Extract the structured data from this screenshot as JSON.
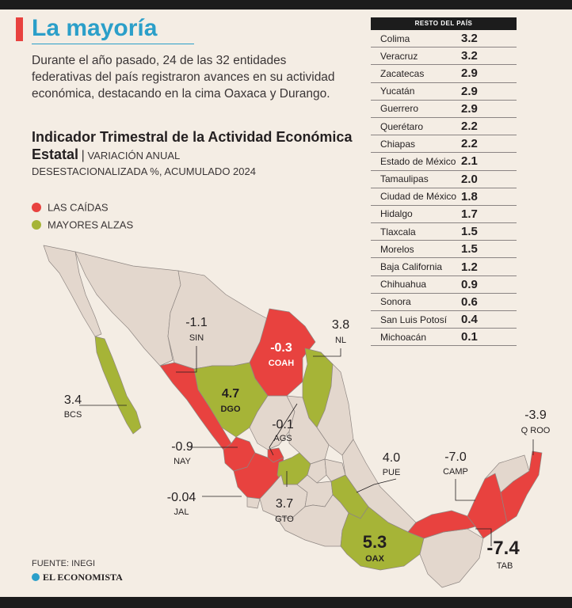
{
  "header": {
    "title": "La mayoría",
    "intro": "Durante el año pasado, 24 de las 32 entidades federativas del país registraron avances en su actividad económica, destacando en la cima Oaxaca y Durango.",
    "indicator_bold": "Indicador Trimestral de la Actividad Económica Estatal",
    "indicator_separator": "|",
    "indicator_sub1": "VARIACIÓN ANUAL",
    "indicator_sub2": "DESESTACIONALIZADA %, ACUMULADO 2024"
  },
  "legend": {
    "falls_label": "LAS CAÍDAS",
    "rises_label": "MAYORES ALZAS",
    "falls_color": "#e8423f",
    "rises_color": "#a6b437",
    "other_color": "#e3d7cd"
  },
  "table": {
    "header": "RESTO DEL PAÍS",
    "rows": [
      {
        "name": "Colima",
        "value": "3.2"
      },
      {
        "name": "Veracruz",
        "value": "3.2"
      },
      {
        "name": "Zacatecas",
        "value": "2.9"
      },
      {
        "name": "Yucatán",
        "value": "2.9"
      },
      {
        "name": "Guerrero",
        "value": "2.9"
      },
      {
        "name": "Querétaro",
        "value": "2.2"
      },
      {
        "name": "Chiapas",
        "value": "2.2"
      },
      {
        "name": "Estado de México",
        "value": "2.1"
      },
      {
        "name": "Tamaulipas",
        "value": "2.0"
      },
      {
        "name": "Ciudad de México",
        "value": "1.8"
      },
      {
        "name": "Hidalgo",
        "value": "1.7"
      },
      {
        "name": "Tlaxcala",
        "value": "1.5"
      },
      {
        "name": "Morelos",
        "value": "1.5"
      },
      {
        "name": "Baja California",
        "value": "1.2"
      },
      {
        "name": "Chihuahua",
        "value": "0.9"
      },
      {
        "name": "Sonora",
        "value": "0.6"
      },
      {
        "name": "San Luis Potosí",
        "value": "0.4"
      },
      {
        "name": "Michoacán",
        "value": "0.1"
      }
    ]
  },
  "map": {
    "labels": {
      "sin": {
        "value": "-1.1",
        "code": "SIN"
      },
      "coah": {
        "value": "-0.3",
        "code": "COAH"
      },
      "nl": {
        "value": "3.8",
        "code": "NL"
      },
      "bcs": {
        "value": "3.4",
        "code": "BCS"
      },
      "dgo": {
        "value": "4.7",
        "code": "DGO"
      },
      "ags": {
        "value": "-0.1",
        "code": "AGS"
      },
      "nay": {
        "value": "-0.9",
        "code": "NAY"
      },
      "jal": {
        "value": "-0.04",
        "code": "JAL"
      },
      "gto": {
        "value": "3.7",
        "code": "GTO"
      },
      "pue": {
        "value": "4.0",
        "code": "PUE"
      },
      "camp": {
        "value": "-7.0",
        "code": "CAMP"
      },
      "qroo": {
        "value": "-3.9",
        "code": "Q ROO"
      },
      "oax": {
        "value": "5.3",
        "code": "OAX"
      },
      "tab": {
        "value": "-7.4",
        "code": "TAB"
      }
    }
  },
  "footer": {
    "source": "FUENTE: INEGI",
    "brand": "EL ECONOMISTA"
  }
}
